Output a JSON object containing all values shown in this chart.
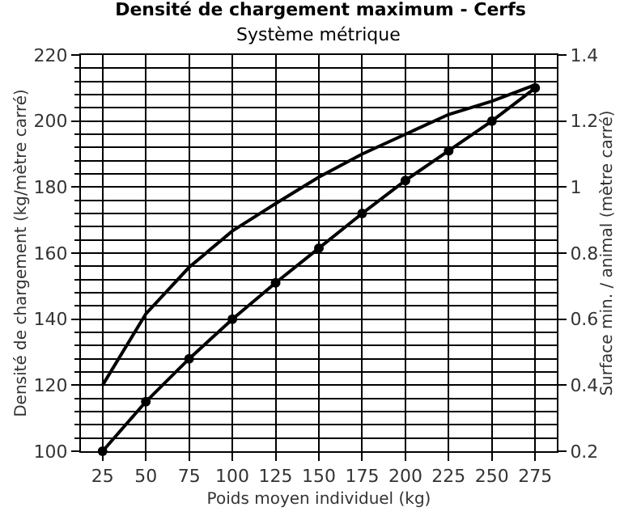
{
  "chart_data": {
    "type": "line",
    "title": "Densité de chargement maximum - Cerfs",
    "subtitle": "Système métrique",
    "xlabel": "Poids moyen individuel (kg)",
    "ylabel": "Densité de chargement (kg/mètre carré)",
    "y2label": "Surface min. / animal (mètre carré)",
    "x": [
      25,
      50,
      75,
      100,
      125,
      150,
      175,
      200,
      225,
      250,
      275
    ],
    "series": [
      {
        "color": "#000000",
        "marker": "none",
        "values": [
          120,
          141.6,
          155.7,
          166.7,
          175,
          183,
          190,
          196,
          202,
          206,
          211
        ]
      },
      {
        "color": "#000000",
        "marker": "circle",
        "axis": "y2",
        "values": [
          0.2,
          0.35,
          0.48,
          0.6,
          0.71,
          0.815,
          0.92,
          1.02,
          1.11,
          1.2,
          1.3
        ]
      }
    ],
    "xlim": [
      12.5,
      287.5
    ],
    "xticks": [
      25,
      50,
      75,
      100,
      125,
      150,
      175,
      200,
      225,
      250,
      275
    ],
    "ylim": [
      100,
      220
    ],
    "yticks": [
      100,
      120,
      140,
      160,
      180,
      200,
      220
    ],
    "y2lim": [
      0.2,
      1.4
    ],
    "y2ticks": [
      0.2,
      0.4,
      0.6,
      0.8,
      1,
      1.2,
      1.4
    ],
    "grid": true,
    "line_style": "solid"
  }
}
